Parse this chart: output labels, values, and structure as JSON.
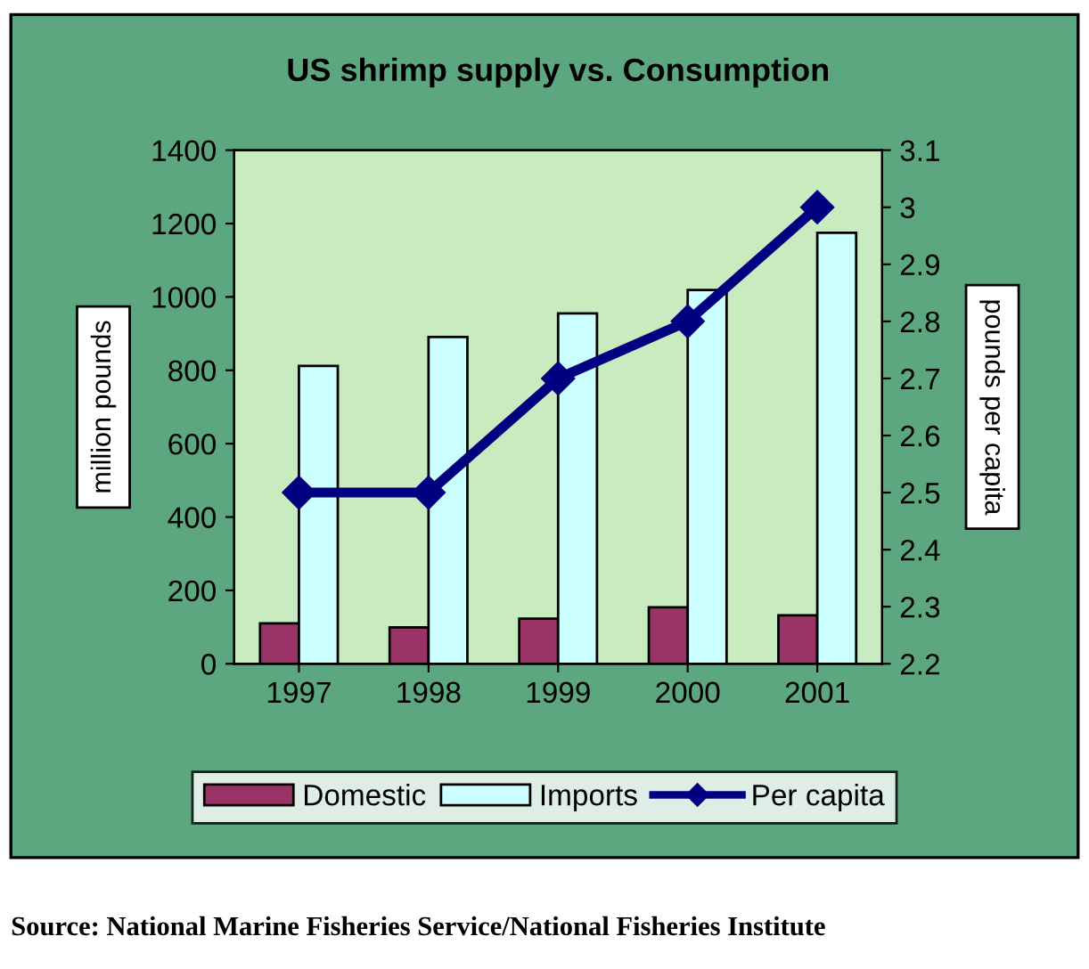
{
  "chart_data": {
    "type": "bar",
    "title": "US shrimp supply vs. Consumption",
    "categories": [
      "1997",
      "1998",
      "1999",
      "2000",
      "2001"
    ],
    "series": [
      {
        "name": "Domestic",
        "color": "#993366",
        "values": [
          110,
          99,
          123,
          154,
          132
        ]
      },
      {
        "name": "Imports",
        "color": "#ccffff",
        "values": [
          812,
          891,
          955,
          1019,
          1175
        ]
      },
      {
        "name": "Per capita",
        "color": "#000080",
        "type": "line",
        "axis": "y2",
        "values": [
          2.5,
          2.5,
          2.7,
          2.8,
          3.0
        ]
      }
    ],
    "ylabel": "million pounds",
    "y2label": "pounds per capita",
    "ylim": [
      0,
      1400
    ],
    "yticks": [
      0,
      200,
      400,
      600,
      800,
      1000,
      1200,
      1400
    ],
    "y2lim": [
      2.2,
      3.1
    ],
    "y2ticks": [
      {
        "value": 2.2,
        "label": "2.2"
      },
      {
        "value": 2.3,
        "label": "2.3"
      },
      {
        "value": 2.4,
        "label": "2.4"
      },
      {
        "value": 2.5,
        "label": "2.5"
      },
      {
        "value": 2.6,
        "label": "2.6"
      },
      {
        "value": 2.7,
        "label": "2.7"
      },
      {
        "value": 2.8,
        "label": "2.8"
      },
      {
        "value": 2.9,
        "label": "2.9"
      },
      {
        "value": 3.0,
        "label": "3"
      },
      {
        "value": 3.1,
        "label": "3.1"
      }
    ],
    "marker": "diamond",
    "legend": "bottom",
    "grid": false,
    "annotations": [
      "Source: National Marine Fisheries Service/National Fisheries Institute"
    ]
  }
}
